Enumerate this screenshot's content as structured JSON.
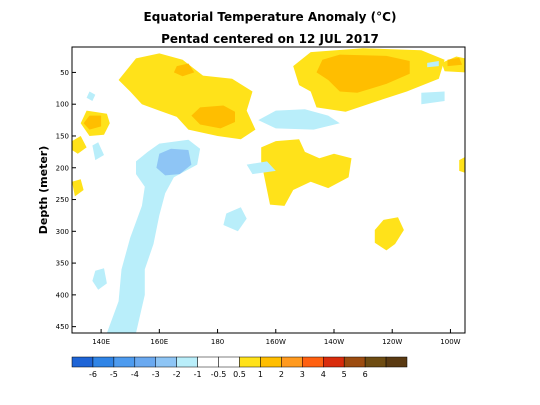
{
  "chart_data": {
    "type": "heatmap",
    "title": "Equatorial Temperature Anomaly (°C)",
    "subtitle": "Pentad centered on 12 JUL 2017",
    "ylabel": "Depth (meter)",
    "xlabel": "",
    "xlim": [
      130,
      265
    ],
    "ylim": [
      460,
      10
    ],
    "y_inverted": true,
    "x_ticks": [
      {
        "label": "140E",
        "value": 140
      },
      {
        "label": "160E",
        "value": 160
      },
      {
        "label": "180",
        "value": 180
      },
      {
        "label": "160W",
        "value": 200
      },
      {
        "label": "140W",
        "value": 220
      },
      {
        "label": "120W",
        "value": 240
      },
      {
        "label": "100W",
        "value": 260
      }
    ],
    "y_ticks": [
      50,
      100,
      150,
      200,
      250,
      300,
      350,
      400,
      450
    ],
    "colorbar": {
      "labels": [
        "-6",
        "-5",
        "-4",
        "-3",
        "-2",
        "-1",
        "-0.5",
        "0.5",
        "1",
        "2",
        "3",
        "4",
        "5",
        "6"
      ],
      "colors": [
        "#1e64d6",
        "#2f84e6",
        "#4d9bef",
        "#6aa9f0",
        "#8ec5f5",
        "#b9eefa",
        "#ffffff",
        "#ffffff",
        "#ffe21a",
        "#ffbe00",
        "#ff9a1f",
        "#ff6010",
        "#d92c0c",
        "#9c4c10",
        "#6e4c12",
        "#5a3a12"
      ]
    },
    "regions": [
      {
        "level": "0.5-1",
        "points": [
          [
            146,
            62
          ],
          [
            152,
            28
          ],
          [
            160,
            20
          ],
          [
            168,
            30
          ],
          [
            175,
            55
          ],
          [
            185,
            60
          ],
          [
            192,
            80
          ],
          [
            190,
            110
          ],
          [
            193,
            140
          ],
          [
            188,
            155
          ],
          [
            180,
            150
          ],
          [
            170,
            140
          ],
          [
            166,
            120
          ],
          [
            160,
            110
          ],
          [
            154,
            100
          ],
          [
            150,
            80
          ]
        ]
      },
      {
        "level": "0.5-1",
        "points": [
          [
            135,
            110
          ],
          [
            142,
            115
          ],
          [
            143,
            130
          ],
          [
            141,
            148
          ],
          [
            136,
            150
          ],
          [
            133,
            130
          ]
        ]
      },
      {
        "level": "0.5-1",
        "points": [
          [
            212,
            18
          ],
          [
            230,
            12
          ],
          [
            250,
            15
          ],
          [
            258,
            30
          ],
          [
            256,
            60
          ],
          [
            245,
            80
          ],
          [
            235,
            95
          ],
          [
            224,
            112
          ],
          [
            214,
            105
          ],
          [
            212,
            80
          ],
          [
            208,
            70
          ],
          [
            206,
            40
          ]
        ]
      },
      {
        "level": "0.5-1",
        "points": [
          [
            200,
            158
          ],
          [
            208,
            155
          ],
          [
            210,
            175
          ],
          [
            215,
            185
          ],
          [
            220,
            178
          ],
          [
            226,
            185
          ],
          [
            225,
            215
          ],
          [
            218,
            232
          ],
          [
            212,
            222
          ],
          [
            206,
            235
          ],
          [
            203,
            260
          ],
          [
            198,
            258
          ],
          [
            197,
            235
          ],
          [
            195,
            190
          ],
          [
            195,
            168
          ]
        ]
      },
      {
        "level": "0.5-1",
        "points": [
          [
            237,
            282
          ],
          [
            242,
            278
          ],
          [
            244,
            298
          ],
          [
            241,
            320
          ],
          [
            238,
            330
          ],
          [
            234,
            318
          ],
          [
            234,
            298
          ]
        ]
      },
      {
        "level": "0.5-1",
        "points": [
          [
            130,
            158
          ],
          [
            133,
            150
          ],
          [
            135,
            168
          ],
          [
            132,
            178
          ],
          [
            130,
            172
          ]
        ]
      },
      {
        "level": "0.5-1",
        "points": [
          [
            130,
            222
          ],
          [
            133,
            218
          ],
          [
            134,
            235
          ],
          [
            131,
            245
          ]
        ]
      },
      {
        "level": "0.5-1",
        "points": [
          [
            257,
            35
          ],
          [
            262,
            25
          ],
          [
            265,
            28
          ],
          [
            265,
            50
          ],
          [
            258,
            48
          ]
        ]
      },
      {
        "level": "0.5-1",
        "points": [
          [
            263,
            188
          ],
          [
            265,
            183
          ],
          [
            265,
            208
          ],
          [
            263,
            205
          ]
        ]
      },
      {
        "level": "1-2",
        "points": [
          [
            216,
            30
          ],
          [
            222,
            22
          ],
          [
            238,
            24
          ],
          [
            246,
            32
          ],
          [
            246,
            52
          ],
          [
            238,
            68
          ],
          [
            228,
            82
          ],
          [
            222,
            80
          ],
          [
            218,
            62
          ],
          [
            214,
            50
          ]
        ]
      },
      {
        "level": "1-2",
        "points": [
          [
            174,
            105
          ],
          [
            182,
            102
          ],
          [
            186,
            112
          ],
          [
            186,
            128
          ],
          [
            181,
            138
          ],
          [
            174,
            132
          ],
          [
            171,
            118
          ]
        ]
      },
      {
        "level": "1-2",
        "points": [
          [
            136,
            118
          ],
          [
            140,
            118
          ],
          [
            140,
            135
          ],
          [
            136,
            140
          ],
          [
            134,
            130
          ]
        ]
      },
      {
        "level": "1-2",
        "points": [
          [
            166,
            40
          ],
          [
            170,
            36
          ],
          [
            172,
            50
          ],
          [
            168,
            56
          ],
          [
            165,
            50
          ]
        ]
      },
      {
        "level": "1-2",
        "points": [
          [
            259,
            30
          ],
          [
            263,
            27
          ],
          [
            264,
            38
          ],
          [
            259,
            40
          ]
        ]
      },
      {
        "level": "-1--0.5",
        "points": [
          [
            156,
            175
          ],
          [
            160,
            162
          ],
          [
            170,
            156
          ],
          [
            174,
            170
          ],
          [
            173,
            195
          ],
          [
            165,
            215
          ],
          [
            162,
            240
          ],
          [
            160,
            275
          ],
          [
            158,
            320
          ],
          [
            155,
            360
          ],
          [
            155,
            400
          ],
          [
            152,
            460
          ],
          [
            142,
            460
          ],
          [
            146,
            410
          ],
          [
            147,
            360
          ],
          [
            150,
            310
          ],
          [
            154,
            260
          ],
          [
            155,
            230
          ],
          [
            152,
            210
          ],
          [
            152,
            190
          ]
        ]
      },
      {
        "level": "-1--0.5",
        "points": [
          [
            183,
            272
          ],
          [
            188,
            262
          ],
          [
            190,
            280
          ],
          [
            187,
            300
          ],
          [
            182,
            290
          ]
        ]
      },
      {
        "level": "-1--0.5",
        "points": [
          [
            194,
            125
          ],
          [
            200,
            110
          ],
          [
            210,
            108
          ],
          [
            218,
            118
          ],
          [
            222,
            130
          ],
          [
            213,
            140
          ],
          [
            200,
            138
          ]
        ]
      },
      {
        "level": "-1--0.5",
        "points": [
          [
            250,
            82
          ],
          [
            258,
            80
          ],
          [
            258,
            95
          ],
          [
            250,
            100
          ]
        ]
      },
      {
        "level": "-1--0.5",
        "points": [
          [
            137,
            165
          ],
          [
            139,
            160
          ],
          [
            141,
            180
          ],
          [
            138,
            188
          ]
        ]
      },
      {
        "level": "-1--0.5",
        "points": [
          [
            138,
            362
          ],
          [
            141,
            358
          ],
          [
            142,
            382
          ],
          [
            139,
            392
          ],
          [
            137,
            378
          ]
        ]
      },
      {
        "level": "-1--0.5",
        "points": [
          [
            190,
            195
          ],
          [
            197,
            190
          ],
          [
            200,
            205
          ],
          [
            192,
            210
          ]
        ]
      },
      {
        "level": "-1--0.5",
        "points": [
          [
            136,
            80
          ],
          [
            138,
            85
          ],
          [
            137,
            95
          ],
          [
            135,
            90
          ]
        ]
      },
      {
        "level": "-1--0.5",
        "points": [
          [
            252,
            35
          ],
          [
            256,
            32
          ],
          [
            256,
            40
          ],
          [
            252,
            42
          ]
        ]
      },
      {
        "level": "-2--1",
        "points": [
          [
            160,
            178
          ],
          [
            164,
            170
          ],
          [
            170,
            172
          ],
          [
            171,
            195
          ],
          [
            167,
            210
          ],
          [
            162,
            212
          ],
          [
            159,
            200
          ]
        ]
      }
    ]
  }
}
